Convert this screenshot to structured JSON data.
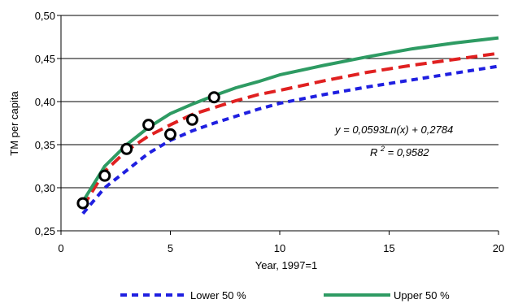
{
  "chart_data": {
    "type": "line",
    "title": "",
    "xlabel": "Year, 1997=1",
    "ylabel": "TM per capita",
    "xlim": [
      0,
      20
    ],
    "ylim": [
      0.25,
      0.5
    ],
    "x_ticks": [
      "0",
      "5",
      "10",
      "15",
      "20"
    ],
    "y_ticks": [
      "0,25",
      "0,30",
      "0,35",
      "0,40",
      "0,45",
      "0,50"
    ],
    "grid": "horizontal",
    "legend_position": "bottom",
    "trendline_equation": "y = 0,0593Ln(x) + 0,2784",
    "r_squared_label": "R",
    "r_squared_exponent": "2",
    "r_squared_value": " = 0,9582",
    "observed": {
      "style": "circles",
      "color": "#000000",
      "x": [
        1,
        2,
        3,
        4,
        5,
        6,
        7
      ],
      "y": [
        0.282,
        0.314,
        0.345,
        0.373,
        0.362,
        0.379,
        0.405
      ]
    },
    "series": [
      {
        "name": "Lower 50 %",
        "color": "#1f1fe0",
        "style": "short-dash",
        "x": [
          1,
          2,
          3,
          4,
          5,
          6,
          7,
          8,
          9,
          10,
          12,
          14,
          16,
          18,
          20
        ],
        "y": [
          0.27,
          0.3,
          0.32,
          0.34,
          0.355,
          0.366,
          0.375,
          0.383,
          0.391,
          0.398,
          0.408,
          0.417,
          0.425,
          0.433,
          0.441
        ]
      },
      {
        "color": "#e02020",
        "style": "long-dash",
        "x": [
          1,
          2,
          3,
          4,
          5,
          6,
          7,
          8,
          9,
          10,
          12,
          14,
          16,
          18,
          20
        ],
        "y": [
          0.278,
          0.319,
          0.343,
          0.36,
          0.373,
          0.385,
          0.393,
          0.401,
          0.408,
          0.413,
          0.424,
          0.434,
          0.442,
          0.449,
          0.456
        ]
      },
      {
        "name": "Upper 50 %",
        "color": "#2e9b63",
        "style": "solid",
        "x": [
          1,
          2,
          3,
          4,
          5,
          6,
          7,
          8,
          9,
          10,
          12,
          14,
          16,
          18,
          20
        ],
        "y": [
          0.284,
          0.325,
          0.35,
          0.37,
          0.386,
          0.397,
          0.407,
          0.416,
          0.423,
          0.431,
          0.442,
          0.452,
          0.461,
          0.468,
          0.474
        ]
      }
    ]
  }
}
